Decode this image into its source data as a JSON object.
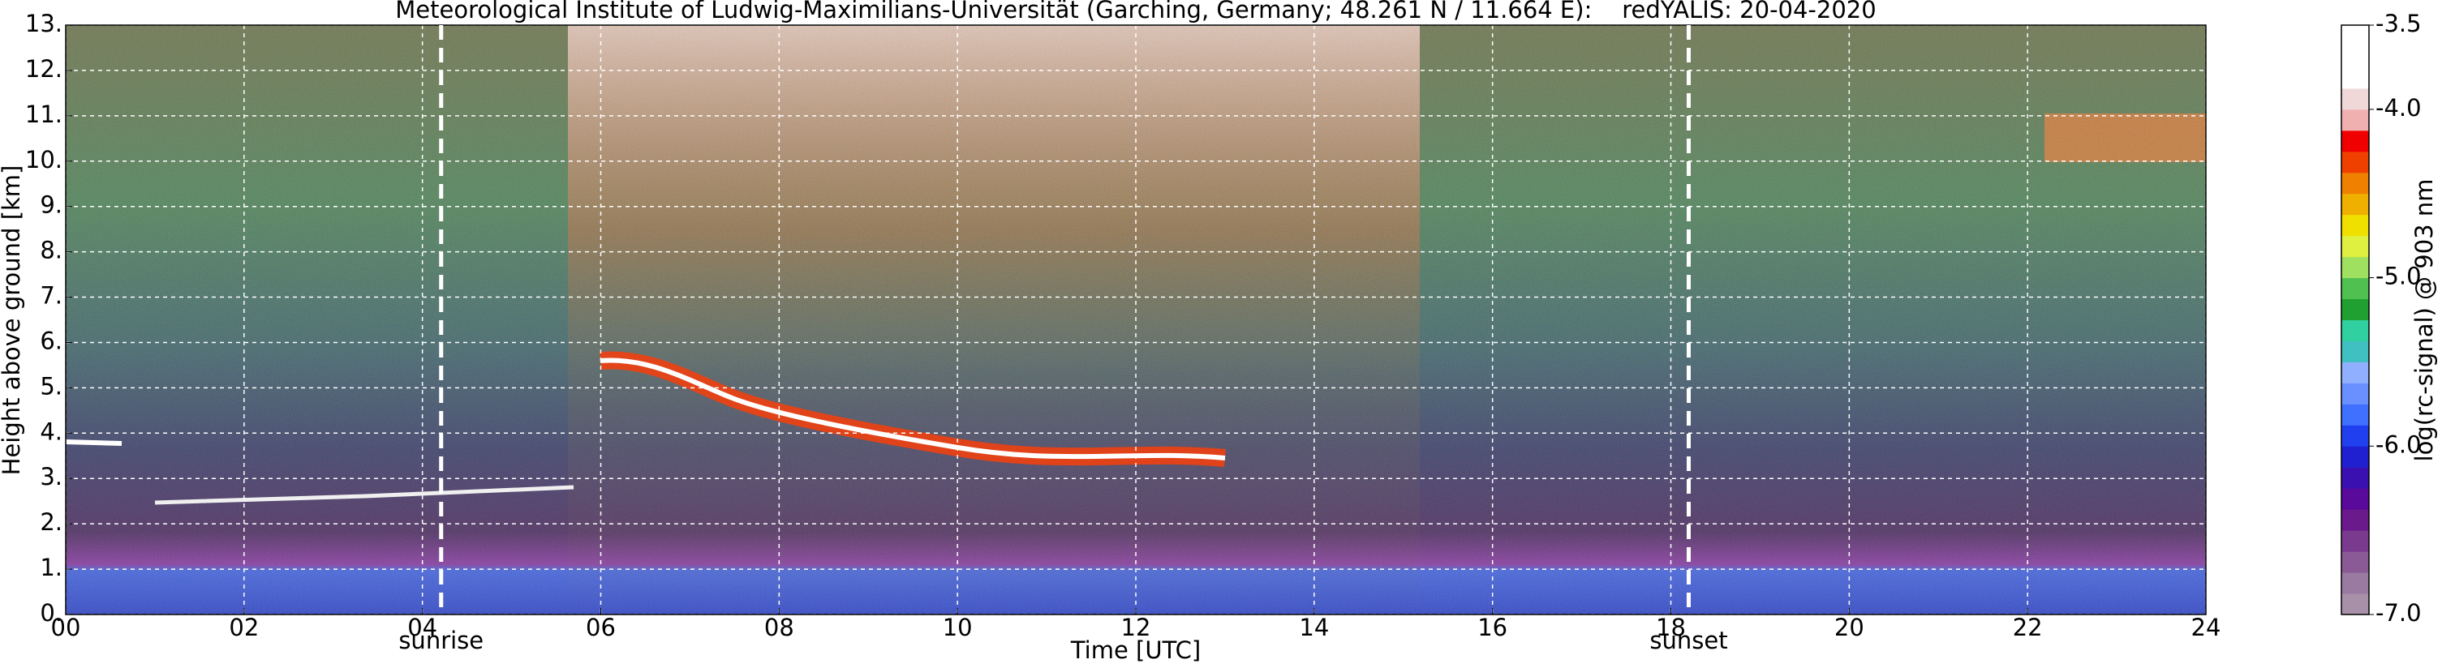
{
  "chart_data": {
    "type": "heatmap",
    "title": "Meteorological Institute of Ludwig-Maximilians-Universität (Garching, Germany; 48.261 N / 11.664 E):    redYALIS: 20-04-2020",
    "x_label": "Time [UTC]",
    "y_label": "Height above ground [km]",
    "colorbar_label": "log(rc-signal) @ 903 nm",
    "xlim": [
      0,
      24
    ],
    "xticks": [
      {
        "value": 0,
        "label": "00"
      },
      {
        "value": 2,
        "label": "02"
      },
      {
        "value": 4,
        "label": "04"
      },
      {
        "value": 6,
        "label": "06"
      },
      {
        "value": 8,
        "label": "08"
      },
      {
        "value": 10,
        "label": "10"
      },
      {
        "value": 12,
        "label": "12"
      },
      {
        "value": 14,
        "label": "14"
      },
      {
        "value": 16,
        "label": "16"
      },
      {
        "value": 18,
        "label": "18"
      },
      {
        "value": 20,
        "label": "20"
      },
      {
        "value": 22,
        "label": "22"
      },
      {
        "value": 24,
        "label": "24"
      }
    ],
    "ylim": [
      0,
      13
    ],
    "yticks": [
      {
        "value": 0,
        "label": "0."
      },
      {
        "value": 1,
        "label": "1."
      },
      {
        "value": 2,
        "label": "2."
      },
      {
        "value": 3,
        "label": "3."
      },
      {
        "value": 4,
        "label": "4."
      },
      {
        "value": 5,
        "label": "5."
      },
      {
        "value": 6,
        "label": "6."
      },
      {
        "value": 7,
        "label": "7."
      },
      {
        "value": 8,
        "label": "8."
      },
      {
        "value": 9,
        "label": "9."
      },
      {
        "value": 10,
        "label": "10."
      },
      {
        "value": 11,
        "label": "11."
      },
      {
        "value": 12,
        "label": "12."
      },
      {
        "value": 13,
        "label": "13."
      }
    ],
    "grid": true,
    "clim": [
      -7,
      -3.5
    ],
    "cticks": [
      {
        "value": -7,
        "label": "-7.0"
      },
      {
        "value": -6,
        "label": "-6.0"
      },
      {
        "value": -5,
        "label": "-5.0"
      },
      {
        "value": -4,
        "label": "-4.0"
      },
      -3.5
    ],
    "colormap": [
      "#a890a8",
      "#9a7aa0",
      "#8a5a96",
      "#7a3a8e",
      "#6a1a8a",
      "#5a0a9a",
      "#3a10b0",
      "#2020d0",
      "#2040f0",
      "#4070ff",
      "#6a90ff",
      "#90b0ff",
      "#40c0c0",
      "#30d0a0",
      "#20a030",
      "#50c050",
      "#a0e060",
      "#e0f040",
      "#f0e000",
      "#f0b000",
      "#f08000",
      "#f04000",
      "#f00000",
      "#f0b0b0",
      "#f0d8d8",
      "#ffffff",
      "#ffffff",
      "#ffffff"
    ],
    "markers": [
      {
        "x": 4.21,
        "label": "sunrise"
      },
      {
        "x": 18.2,
        "label": "sunset"
      }
    ]
  }
}
